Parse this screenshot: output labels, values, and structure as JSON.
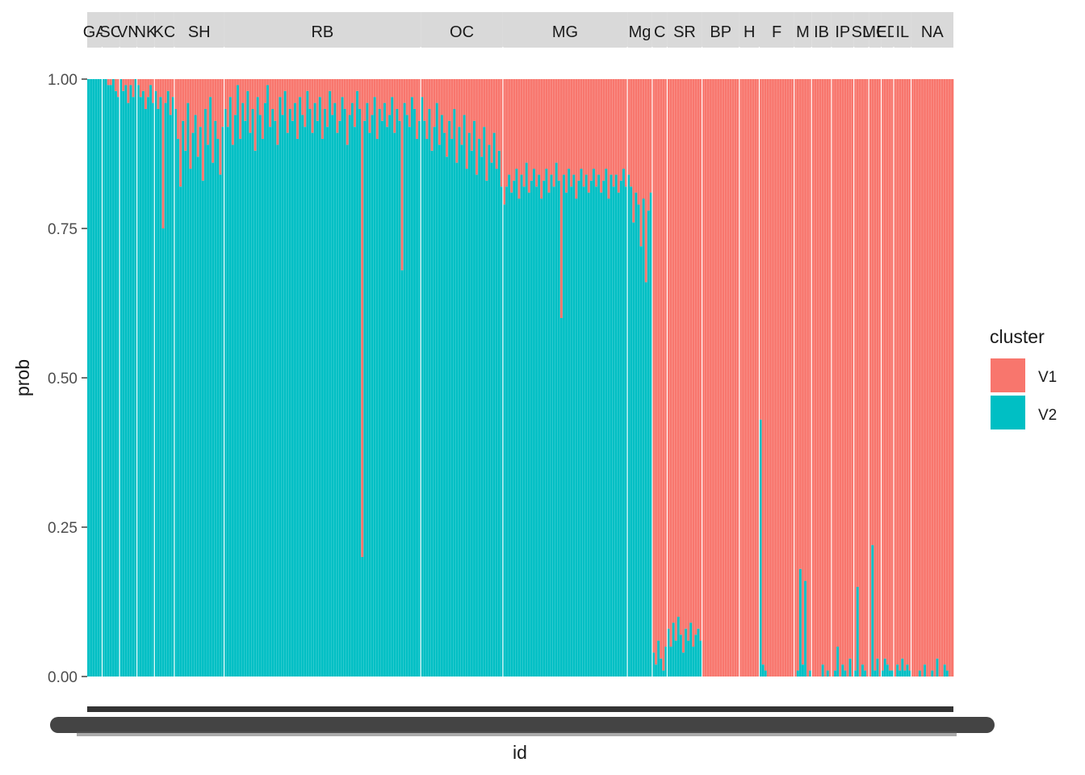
{
  "chart_data": {
    "type": "bar",
    "stacked": true,
    "faceted_by": "group",
    "title": "",
    "xlabel": "id",
    "ylabel": "prob",
    "ylim": [
      0,
      1
    ],
    "y_ticks": [
      "0.00",
      "0.25",
      "0.50",
      "0.75",
      "1.00"
    ],
    "grid": false,
    "legend": {
      "title": "cluster",
      "placement": "right",
      "entries": [
        {
          "name": "V1",
          "color": "#F8766D"
        },
        {
          "name": "V2",
          "color": "#00BFC4"
        }
      ]
    },
    "colors": {
      "V1": "#F8766D",
      "V2": "#00BFC4",
      "strip_bg": "#D9D9D9"
    },
    "note": "V1 = 1 - V2 for each id; values below are the V2 probability per id",
    "facets": [
      {
        "label": "GA",
        "v2": [
          1,
          1,
          1,
          1,
          1,
          1
        ]
      },
      {
        "label": "SC",
        "v2": [
          1,
          1,
          0.99,
          0.99,
          1,
          0.98,
          0.97
        ]
      },
      {
        "label": "VN",
        "v2": [
          1,
          0.98,
          0.99,
          0.96,
          0.99,
          0.97,
          1
        ]
      },
      {
        "label": "NK",
        "v2": [
          0.99,
          0.97,
          0.98,
          0.95,
          0.97,
          0.99,
          0.96
        ]
      },
      {
        "label": "KC",
        "v2": [
          0.98,
          0.95,
          0.97,
          0.75,
          0.96,
          0.98,
          0.94,
          0.97
        ]
      },
      {
        "label": "SH",
        "v2": [
          0.95,
          0.9,
          0.82,
          0.93,
          0.88,
          0.96,
          0.85,
          0.91,
          0.94,
          0.87,
          0.92,
          0.83,
          0.95,
          0.89,
          0.97,
          0.86,
          0.93,
          0.9,
          0.84,
          0.92
        ]
      },
      {
        "label": "RB",
        "v2": [
          0.95,
          0.92,
          0.97,
          0.89,
          0.94,
          0.99,
          0.9,
          0.96,
          0.93,
          0.98,
          0.91,
          0.95,
          0.88,
          0.97,
          0.94,
          0.9,
          0.96,
          0.99,
          0.92,
          0.95,
          0.93,
          0.89,
          0.97,
          0.94,
          0.98,
          0.91,
          0.95,
          0.93,
          0.96,
          0.9,
          0.97,
          0.94,
          0.92,
          0.98,
          0.95,
          0.91,
          0.96,
          0.93,
          0.97,
          0.9,
          0.95,
          0.92,
          0.98,
          0.94,
          0.96,
          0.91,
          0.93,
          0.97,
          0.95,
          0.89,
          0.94,
          0.96,
          0.92,
          0.98,
          0.95,
          0.2,
          0.93,
          0.96,
          0.91,
          0.94,
          0.97,
          0.9,
          0.95,
          0.93,
          0.96,
          0.92,
          0.94,
          0.97,
          0.91,
          0.95,
          0.93,
          0.68,
          0.96,
          0.94,
          0.92,
          0.97,
          0.95,
          0.9,
          0.93
        ]
      },
      {
        "label": "OC",
        "v2": [
          0.97,
          0.93,
          0.9,
          0.95,
          0.88,
          0.92,
          0.96,
          0.89,
          0.94,
          0.91,
          0.87,
          0.93,
          0.9,
          0.95,
          0.86,
          0.92,
          0.89,
          0.94,
          0.85,
          0.91,
          0.88,
          0.93,
          0.84,
          0.9,
          0.87,
          0.92,
          0.83,
          0.89,
          0.86,
          0.91,
          0.85,
          0.88,
          0.82
        ]
      },
      {
        "label": "MG",
        "v2": [
          0.79,
          0.82,
          0.84,
          0.81,
          0.83,
          0.85,
          0.8,
          0.84,
          0.82,
          0.86,
          0.81,
          0.83,
          0.85,
          0.82,
          0.84,
          0.8,
          0.83,
          0.85,
          0.81,
          0.84,
          0.82,
          0.86,
          0.83,
          0.6,
          0.84,
          0.81,
          0.85,
          0.82,
          0.84,
          0.8,
          0.83,
          0.85,
          0.82,
          0.84,
          0.81,
          0.83,
          0.85,
          0.82,
          0.84,
          0.81,
          0.83,
          0.85,
          0.8,
          0.84,
          0.82,
          0.84,
          0.81,
          0.83,
          0.85,
          0.82
        ]
      },
      {
        "label": "Mg",
        "v2": [
          0.84,
          0.82,
          0.76,
          0.81,
          0.79,
          0.72,
          0.8,
          0.66,
          0.78,
          0.81
        ]
      },
      {
        "label": "C",
        "v2": [
          0.04,
          0.02,
          0.06,
          0.03,
          0.01,
          0.05
        ]
      },
      {
        "label": "SR",
        "v2": [
          0.08,
          0.05,
          0.09,
          0.06,
          0.1,
          0.07,
          0.04,
          0.08,
          0.06,
          0.09,
          0.05,
          0.07,
          0.08,
          0.06
        ]
      },
      {
        "label": "BP",
        "v2": [
          0,
          0,
          0,
          0,
          0,
          0,
          0,
          0,
          0,
          0,
          0,
          0,
          0,
          0,
          0
        ]
      },
      {
        "label": "H",
        "v2": [
          0,
          0,
          0,
          0,
          0,
          0,
          0,
          0
        ]
      },
      {
        "label": "F",
        "v2": [
          0.43,
          0.02,
          0.01,
          0,
          0,
          0,
          0,
          0,
          0,
          0,
          0,
          0,
          0,
          0
        ]
      },
      {
        "label": "M",
        "v2": [
          0,
          0.01,
          0.18,
          0.02,
          0.16,
          0,
          0.01
        ]
      },
      {
        "label": "IB",
        "v2": [
          0,
          0,
          0,
          0,
          0.02,
          0,
          0.01,
          0
        ]
      },
      {
        "label": "IP",
        "v2": [
          0,
          0.01,
          0.05,
          0,
          0.02,
          0.01,
          0,
          0.03,
          0
        ]
      },
      {
        "label": "SL",
        "v2": [
          0.01,
          0.15,
          0,
          0.02,
          0.01,
          0
        ]
      },
      {
        "label": "MC",
        "v2": [
          0,
          0.22,
          0.01,
          0.03,
          0
        ]
      },
      {
        "label": "ED",
        "v2": [
          0.01,
          0.03,
          0.02,
          0.01,
          0.01
        ]
      },
      {
        "label": "IL",
        "v2": [
          0,
          0.02,
          0.01,
          0.03,
          0.01,
          0.02,
          0.01
        ]
      },
      {
        "label": "NA",
        "v2": [
          0,
          0,
          0,
          0.01,
          0,
          0.02,
          0,
          0,
          0.01,
          0,
          0.03,
          0,
          0,
          0.02,
          0.01,
          0,
          0
        ]
      }
    ]
  }
}
